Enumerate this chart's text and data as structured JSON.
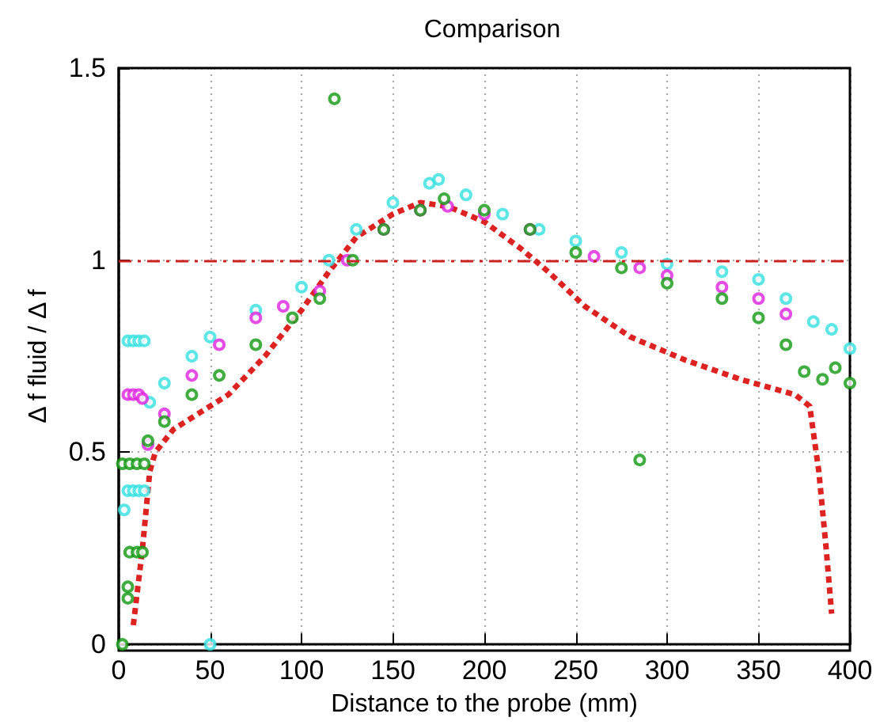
{
  "chart_data": {
    "type": "scatter",
    "title": "Comparison",
    "xlabel": "Distance to the probe (mm)",
    "ylabel": "Δ f fluid / Δ f",
    "xlim": [
      0,
      400
    ],
    "xticks": [
      0,
      50,
      100,
      150,
      200,
      250,
      300,
      350,
      400
    ],
    "ylim": [
      0,
      1.5
    ],
    "yticks": [
      0,
      0.5,
      1,
      1.5
    ],
    "grid": true,
    "marker": "circle",
    "ref_lines": [
      {
        "axis": "y",
        "value": 1,
        "color": "#cc2222",
        "line_style": "dashdot"
      }
    ],
    "series": [
      {
        "color": "#33e0e0",
        "x": [
          3,
          5,
          8,
          11,
          14,
          5,
          8,
          11,
          14,
          50,
          17,
          25,
          40,
          50,
          75,
          100,
          115,
          130,
          150,
          170,
          175,
          190,
          210,
          230,
          250,
          275,
          300,
          330,
          350,
          365,
          380,
          390,
          400
        ],
        "values": [
          0.35,
          0.79,
          0.79,
          0.79,
          0.79,
          0.4,
          0.4,
          0.4,
          0.4,
          0.0,
          0.63,
          0.68,
          0.75,
          0.8,
          0.87,
          0.93,
          1.0,
          1.08,
          1.15,
          1.2,
          1.21,
          1.17,
          1.12,
          1.08,
          1.05,
          1.02,
          0.99,
          0.97,
          0.95,
          0.9,
          0.84,
          0.82,
          0.77
        ]
      },
      {
        "color": "#dd22dd",
        "x": [
          5,
          8,
          11,
          13,
          16,
          25,
          40,
          55,
          75,
          90,
          110,
          125,
          145,
          165,
          180,
          200,
          225,
          260,
          285,
          300,
          330,
          350,
          365
        ],
        "values": [
          0.65,
          0.65,
          0.65,
          0.64,
          0.52,
          0.6,
          0.7,
          0.78,
          0.85,
          0.88,
          0.92,
          1.0,
          1.08,
          1.13,
          1.14,
          1.12,
          1.08,
          1.01,
          0.98,
          0.96,
          0.93,
          0.9,
          0.86
        ]
      },
      {
        "color": "#119911",
        "x": [
          2,
          5,
          5,
          2,
          6,
          10,
          14,
          6,
          10,
          13,
          118,
          285,
          16,
          25,
          40,
          55,
          75,
          95,
          110,
          128,
          145,
          165,
          178,
          200,
          225,
          250,
          275,
          300,
          330,
          350,
          365,
          375,
          385,
          392,
          400
        ],
        "values": [
          0.0,
          0.12,
          0.15,
          0.47,
          0.47,
          0.47,
          0.47,
          0.24,
          0.24,
          0.24,
          1.42,
          0.48,
          0.53,
          0.58,
          0.65,
          0.7,
          0.78,
          0.85,
          0.9,
          1.0,
          1.08,
          1.13,
          1.16,
          1.13,
          1.08,
          1.02,
          0.98,
          0.94,
          0.9,
          0.85,
          0.78,
          0.71,
          0.69,
          0.72,
          0.68
        ]
      },
      {
        "type": "line",
        "color": "#dd2222",
        "line_style": "dashed",
        "marker": "none",
        "x": [
          8,
          13,
          17,
          20,
          30,
          60,
          80,
          100,
          115,
          130,
          150,
          165,
          180,
          200,
          220,
          235,
          255,
          280,
          310,
          340,
          370,
          378,
          383,
          387,
          390
        ],
        "values": [
          0.05,
          0.25,
          0.45,
          0.5,
          0.56,
          0.65,
          0.75,
          0.87,
          0.97,
          1.06,
          1.12,
          1.15,
          1.14,
          1.1,
          1.03,
          0.97,
          0.88,
          0.8,
          0.74,
          0.69,
          0.65,
          0.62,
          0.45,
          0.25,
          0.08
        ]
      }
    ]
  }
}
